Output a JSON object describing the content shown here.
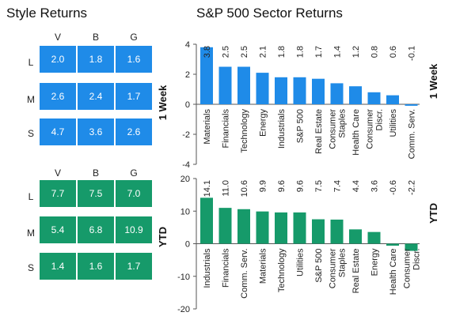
{
  "style_title": "Style Returns",
  "sector_title": "S&P 500 Sector Returns",
  "style_grids": [
    {
      "columns": [
        "V",
        "B",
        "G"
      ],
      "rows": [
        "L",
        "M",
        "S"
      ],
      "values": [
        [
          "2.0",
          "1.8",
          "1.6"
        ],
        [
          "2.6",
          "2.4",
          "1.7"
        ],
        [
          "4.7",
          "3.6",
          "2.6"
        ]
      ],
      "color": "#1f8be8"
    },
    {
      "columns": [
        "V",
        "B",
        "G"
      ],
      "rows": [
        "L",
        "M",
        "S"
      ],
      "values": [
        [
          "7.7",
          "7.5",
          "7.0"
        ],
        [
          "5.4",
          "6.8",
          "10.9"
        ],
        [
          "1.4",
          "1.6",
          "1.7"
        ]
      ],
      "color": "#169a6a"
    }
  ],
  "chart_data": [
    {
      "type": "bar",
      "period_label": "1 Week",
      "color": "#1f8be8",
      "categories": [
        "Materials",
        "Financials",
        "Technology",
        "Energy",
        "Industrials",
        "S&P 500",
        "Real Estate",
        "Consumer Staples",
        "Health Care",
        "Consumer Discr.",
        "Utilities",
        "Comm. Serv."
      ],
      "values": [
        3.8,
        2.5,
        2.5,
        2.1,
        1.8,
        1.8,
        1.7,
        1.4,
        1.2,
        0.8,
        0.6,
        -0.1
      ],
      "value_labels": [
        "3.8",
        "2.5",
        "2.5",
        "2.1",
        "1.8",
        "1.8",
        "1.7",
        "1.4",
        "1.2",
        "0.8",
        "0.6",
        "-0.1"
      ],
      "ylim": [
        -4,
        4
      ],
      "yticks": [
        -4,
        -2,
        0,
        2,
        4
      ],
      "ytick_labels": [
        "-4",
        "-2",
        "0",
        "2",
        "4"
      ]
    },
    {
      "type": "bar",
      "period_label": "YTD",
      "color": "#169a6a",
      "categories": [
        "Industrials",
        "Financials",
        "Comm. Serv.",
        "Materials",
        "Technology",
        "Utilities",
        "S&P 500",
        "Consumer Staples",
        "Real Estate",
        "Energy",
        "Health Care",
        "Consumer Discr."
      ],
      "values": [
        14.1,
        11.0,
        10.6,
        9.9,
        9.6,
        9.6,
        7.5,
        7.4,
        4.4,
        3.6,
        -0.6,
        -2.2
      ],
      "value_labels": [
        "14.1",
        "11.0",
        "10.6",
        "9.9",
        "9.6",
        "9.6",
        "7.5",
        "7.4",
        "4.4",
        "3.6",
        "-0.6",
        "-2.2"
      ],
      "ylim": [
        -20,
        20
      ],
      "yticks": [
        -20,
        -10,
        0,
        10,
        20
      ],
      "ytick_labels": [
        "-20",
        "-10",
        "0",
        "10",
        "20"
      ]
    }
  ]
}
